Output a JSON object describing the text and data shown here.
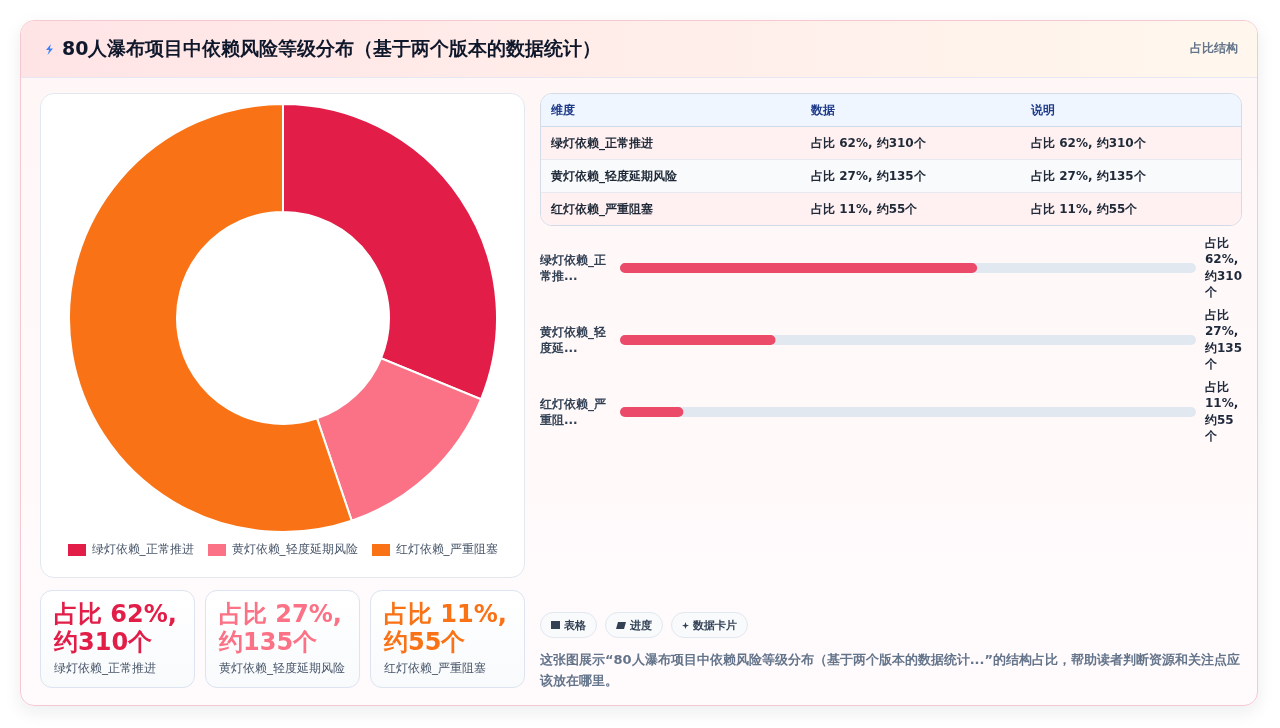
{
  "chart_data": [
    {
      "type": "donut",
      "title": "80人瀑布项目中依赖风险等级分布（基于两个版本的数据统计）",
      "categories": [
        "绿灯依赖_正常推进",
        "黄灯依赖_轻度延期风险",
        "红灯依赖_严重阻塞"
      ],
      "values": [
        31.2,
        13.6,
        55.2
      ],
      "colors": [
        "#e11d48",
        "#fb7185",
        "#f97316"
      ],
      "legend": "bottom"
    },
    {
      "type": "other",
      "subtitle": "占比结构",
      "annotations": [
        "维度",
        "数据",
        "说明",
        "绿灯依赖_正常推进",
        "占比 62%, 约310个",
        "占比 62%, 约310个",
        "黄灯依赖_轻度延期风险",
        "占比 27%, 约135个",
        "占比 27%, 约135个",
        "红灯依赖_严重阻塞",
        "占比 11%, 约55个",
        "占比 11%, 约55个"
      ]
    },
    {
      "type": "bar",
      "orientation": "horizontal",
      "categories": [
        "绿灯依赖_正常推...",
        "黄灯依赖_轻度延...",
        "红灯依赖_严重阻..."
      ],
      "values": [
        62,
        27,
        11
      ],
      "color": "#ec4a69",
      "xlim": [
        0,
        100
      ],
      "tick_labels": "y",
      "value_labels": [
        "占比 62%, 约310个",
        "占比 27%, 约135个",
        "占比 11%, 约55个"
      ]
    },
    {
      "type": "other",
      "categories": [
        "绿灯依赖_正常推进",
        "黄灯依赖_轻度延期风险",
        "红灯依赖_严重阻塞"
      ],
      "value_labels": [
        "占比 62%, 约310个",
        "占比 27%, 约135个",
        "占比 11%, 约55个"
      ]
    },
    {
      "type": "other",
      "annotations": [
        "表格",
        "进度",
        "数据卡片",
        "这张图展示“80人瀑布项目中依赖风险等级分布（基于两个版本的数据统计...”的结构占比，帮助读者判断资源和关注点应该放在哪里。"
      ]
    }
  ]
}
